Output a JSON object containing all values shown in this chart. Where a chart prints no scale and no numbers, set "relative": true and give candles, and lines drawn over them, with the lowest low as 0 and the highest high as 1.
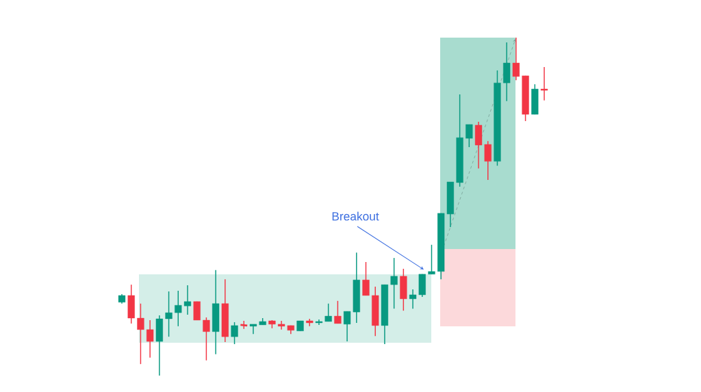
{
  "chart_data": {
    "type": "candlestick",
    "relative": true,
    "categories": [
      null,
      null,
      null,
      null,
      null,
      null,
      null,
      null,
      null,
      null,
      null,
      null,
      null,
      null,
      null,
      null,
      null,
      null,
      null,
      null,
      null,
      null,
      null,
      null,
      null,
      null,
      null,
      null,
      null,
      null,
      null,
      null,
      null,
      null,
      null,
      null,
      null,
      null,
      null,
      null,
      null,
      null,
      null,
      null,
      null,
      null
    ],
    "ohlc": [
      [
        0.217,
        0.241,
        0.213,
        0.237
      ],
      [
        0.237,
        0.269,
        0.154,
        0.17
      ],
      [
        0.17,
        0.213,
        0.034,
        0.136
      ],
      [
        0.136,
        0.164,
        0.053,
        0.101
      ],
      [
        0.101,
        0.178,
        0.0,
        0.168
      ],
      [
        0.168,
        0.249,
        0.115,
        0.186
      ],
      [
        0.186,
        0.251,
        0.146,
        0.208
      ],
      [
        0.206,
        0.267,
        0.18,
        0.219
      ],
      [
        0.219,
        0.219,
        0.164,
        0.164
      ],
      [
        0.164,
        0.172,
        0.045,
        0.13
      ],
      [
        0.13,
        0.312,
        0.063,
        0.213
      ],
      [
        0.213,
        0.285,
        0.099,
        0.115
      ],
      [
        0.115,
        0.158,
        0.093,
        0.148
      ],
      [
        0.15,
        0.162,
        0.138,
        0.148
      ],
      [
        0.146,
        0.152,
        0.123,
        0.152
      ],
      [
        0.15,
        0.17,
        0.15,
        0.16
      ],
      [
        0.162,
        0.164,
        0.14,
        0.152
      ],
      [
        0.152,
        0.162,
        0.136,
        0.146
      ],
      [
        0.148,
        0.148,
        0.123,
        0.134
      ],
      [
        0.132,
        0.162,
        0.132,
        0.162
      ],
      [
        0.162,
        0.168,
        0.146,
        0.156
      ],
      [
        0.156,
        0.166,
        0.15,
        0.16
      ],
      [
        0.16,
        0.213,
        0.16,
        0.176
      ],
      [
        0.176,
        0.221,
        0.154,
        0.154
      ],
      [
        0.152,
        0.19,
        0.101,
        0.19
      ],
      [
        0.188,
        0.364,
        0.156,
        0.283
      ],
      [
        0.283,
        0.336,
        0.237,
        0.237
      ],
      [
        0.237,
        0.263,
        0.117,
        0.148
      ],
      [
        0.148,
        0.269,
        0.093,
        0.269
      ],
      [
        0.269,
        0.348,
        0.198,
        0.294
      ],
      [
        0.294,
        0.316,
        0.192,
        0.227
      ],
      [
        0.227,
        0.255,
        0.198,
        0.239
      ],
      [
        0.239,
        0.3,
        0.233,
        0.3
      ],
      [
        0.3,
        0.387,
        0.3,
        0.308
      ],
      [
        0.308,
        0.48,
        0.285,
        0.48
      ],
      [
        0.478,
        0.573,
        0.439,
        0.573
      ],
      [
        0.571,
        0.832,
        0.559,
        0.704
      ],
      [
        0.702,
        0.743,
        0.676,
        0.743
      ],
      [
        0.741,
        0.751,
        0.613,
        0.682
      ],
      [
        0.684,
        0.694,
        0.579,
        0.634
      ],
      [
        0.634,
        0.903,
        0.621,
        0.866
      ],
      [
        0.866,
        0.986,
        0.812,
        0.925
      ],
      [
        0.925,
        1.0,
        0.874,
        0.885
      ],
      [
        0.887,
        0.887,
        0.753,
        0.773
      ],
      [
        0.773,
        0.862,
        0.773,
        0.848
      ],
      [
        0.848,
        0.913,
        0.814,
        0.844
      ]
    ],
    "colors": [
      "#089981",
      "#f23645",
      "#f23645",
      "#f23645",
      "#089981",
      "#089981",
      "#089981",
      "#089981",
      "#f23645",
      "#f23645",
      "#089981",
      "#f23645",
      "#089981",
      "#f23645",
      "#089981",
      "#089981",
      "#f23645",
      "#f23645",
      "#f23645",
      "#089981",
      "#f23645",
      "#089981",
      "#089981",
      "#f23645",
      "#089981",
      "#089981",
      "#f23645",
      "#f23645",
      "#089981",
      "#089981",
      "#f23645",
      "#089981",
      "#089981",
      "#089981",
      "#089981",
      "#089981",
      "#089981",
      "#089981",
      "#f23645",
      "#f23645",
      "#089981",
      "#089981",
      "#f23645",
      "#f23645",
      "#089981",
      "#f23645"
    ],
    "annotations": [
      "Breakout"
    ]
  }
}
